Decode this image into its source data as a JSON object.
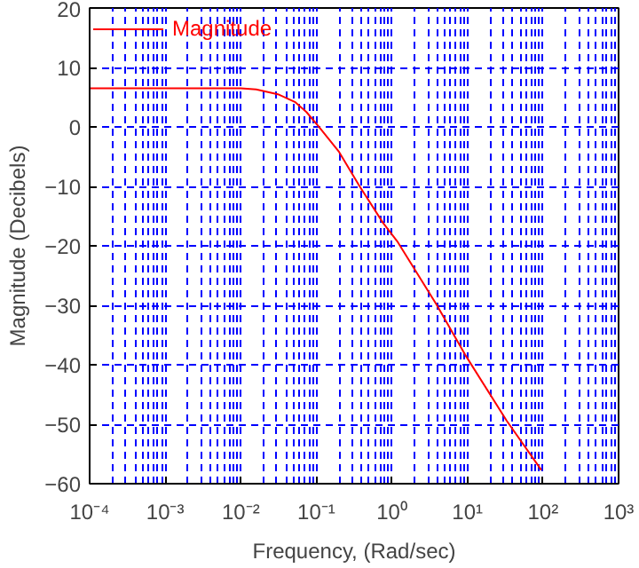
{
  "chart_data": {
    "type": "line",
    "xlabel": "Frequency, (Rad/sec)",
    "ylabel": "Magnitude (Decibels)",
    "log": "x",
    "grid": true,
    "legend": "top left",
    "line_style": "solid",
    "xlim": [
      0.0001,
      1000
    ],
    "ylim": [
      -60,
      20
    ],
    "xticks": [
      {
        "value": 0.0001,
        "label": "10⁻⁴"
      },
      {
        "value": 0.001,
        "label": "10⁻³"
      },
      {
        "value": 0.01,
        "label": "10⁻²"
      },
      {
        "value": 0.1,
        "label": "10⁻¹"
      },
      {
        "value": 1,
        "label": "10⁰"
      },
      {
        "value": 10,
        "label": "10¹"
      },
      {
        "value": 100,
        "label": "10²"
      },
      {
        "value": 1000,
        "label": "10³"
      }
    ],
    "yticks": [
      -60,
      -50,
      -40,
      -30,
      -20,
      -10,
      0,
      10,
      20
    ],
    "series": [
      {
        "name": "Magnitude",
        "color": "#ff0000",
        "x": [
          0.0001,
          0.001,
          0.01,
          0.016,
          0.031,
          0.052,
          0.074,
          0.107,
          0.2,
          0.37,
          0.76,
          1.2,
          3.9,
          9.3,
          33,
          95
        ],
        "values": [
          6.5,
          6.5,
          6.5,
          6.3,
          5.5,
          4.2,
          2.5,
          0.1,
          -4.2,
          -9.9,
          -16.1,
          -19.4,
          -29.9,
          -38.3,
          -49.4,
          -57.7
        ]
      }
    ]
  }
}
